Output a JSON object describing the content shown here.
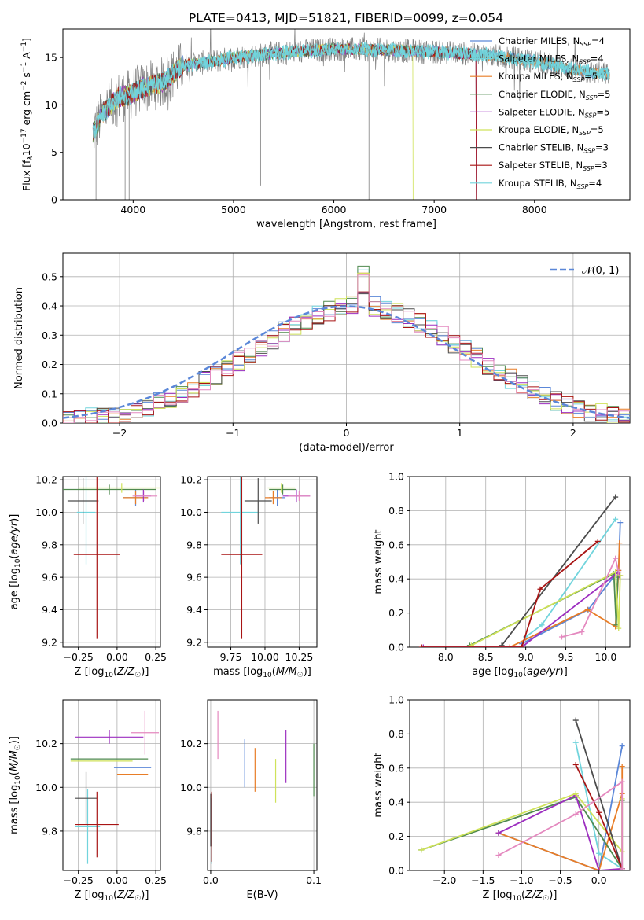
{
  "colors": {
    "c0": "#5b87d8",
    "c1": "#71d4dc",
    "c2": "#e87d27",
    "c3": "#4f8a4f",
    "c4": "#9d2fc0",
    "c5": "#cfe25a",
    "c6": "#4c4c4c",
    "c7": "#a81414",
    "c8": "#e489bf",
    "grid": "#b0b0b0",
    "gaussian": "#5b87d8"
  },
  "chart_data": [
    {
      "id": "spectrum",
      "type": "line",
      "title": "PLATE=0413, MJD=51821, FIBERID=0099, z=0.054",
      "xlabel": "wavelength [Angstrom, rest frame]",
      "ylabel": "Flux [f_λ10^-17 erg cm^-2 s^-1 A^-1]",
      "xlim": [
        3300,
        8950
      ],
      "ylim": [
        0,
        18
      ],
      "xticks": [
        "4000",
        "5000",
        "6000",
        "7000",
        "8000"
      ],
      "yticks": [
        "0",
        "5",
        "10",
        "15"
      ],
      "grid": false,
      "legend": "right",
      "legend_entries": [
        {
          "label": "Chabrier MILES, N",
          "sub": "SSP",
          "suffix": "=4",
          "color": "c0"
        },
        {
          "label": "Salpeter MILES, N",
          "sub": "SSP",
          "suffix": "=4",
          "color": "c1"
        },
        {
          "label": "Kroupa MILES, N",
          "sub": "SSP",
          "suffix": "=5",
          "color": "c2"
        },
        {
          "label": "Chabrier ELODIE, N",
          "sub": "SSP",
          "suffix": "=5",
          "color": "c3"
        },
        {
          "label": "Salpeter ELODIE, N",
          "sub": "SSP",
          "suffix": "=5",
          "color": "c4"
        },
        {
          "label": "Kroupa ELODIE, N",
          "sub": "SSP",
          "suffix": "=5",
          "color": "c5"
        },
        {
          "label": "Chabrier STELIB, N",
          "sub": "SSP",
          "suffix": "=3",
          "color": "c6"
        },
        {
          "label": "Salpeter STELIB, N",
          "sub": "SSP",
          "suffix": "=3",
          "color": "c7"
        },
        {
          "label": "Kroupa STELIB, N",
          "sub": "SSP",
          "suffix": "=4",
          "color": "c1"
        }
      ],
      "continuum_points": [
        [
          3600,
          7.0
        ],
        [
          3700,
          9.2
        ],
        [
          3850,
          10.8
        ],
        [
          3950,
          11.0
        ],
        [
          4100,
          11.8
        ],
        [
          4300,
          12.4
        ],
        [
          4500,
          14.2
        ],
        [
          4800,
          14.6
        ],
        [
          5000,
          15.0
        ],
        [
          5500,
          15.5
        ],
        [
          6000,
          15.9
        ],
        [
          6500,
          15.8
        ],
        [
          7000,
          15.6
        ],
        [
          7500,
          15.3
        ],
        [
          8000,
          14.6
        ],
        [
          8500,
          13.5
        ],
        [
          8750,
          13.2
        ]
      ],
      "models_end": [
        [
          8750,
          8750,
          8750,
          7420,
          7420,
          6790,
          8750,
          7420,
          8750
        ]
      ]
    },
    {
      "id": "residuals",
      "type": "bar",
      "xlabel": "(data-model)/error",
      "ylabel": "Normed distribution",
      "xlim": [
        -2.5,
        2.5
      ],
      "ylim": [
        0,
        0.58
      ],
      "xticks": [
        -2,
        -1,
        0,
        1,
        2
      ],
      "yticks": [
        0.0,
        0.1,
        0.2,
        0.3,
        0.4,
        0.5
      ],
      "xtick_labels": [
        "−2",
        "−1",
        "0",
        "1",
        "2"
      ],
      "ytick_labels": [
        "0.0",
        "0.1",
        "0.2",
        "0.3",
        "0.4",
        "0.5"
      ],
      "grid": true,
      "legend": "top-right",
      "gaussian_label": "𝒩(0, 1)",
      "bin_width": 0.1
    },
    {
      "id": "age_vs_Z",
      "type": "scatter",
      "xlabel": "Z [log10(Z/Z☉)]",
      "ylabel": "age [log10(age/yr)]",
      "xlim": [
        -0.35,
        0.28
      ],
      "ylim": [
        9.17,
        10.22
      ],
      "xticks": [
        "−0.25",
        "0.00",
        "0.25"
      ],
      "yticks": [
        "9.2",
        "9.4",
        "9.6",
        "9.8",
        "10.0",
        "10.2"
      ],
      "grid": true,
      "points": [
        {
          "x": 0.12,
          "y": 10.09,
          "xerr": 0.08,
          "yerr": 0.05,
          "color": "c0"
        },
        {
          "x": -0.2,
          "y": 10.0,
          "xerr": 0.06,
          "yerr": 0.32,
          "color": "c1"
        },
        {
          "x": 0.12,
          "y": 10.09,
          "xerr": 0.08,
          "yerr": 0.04,
          "color": "c2"
        },
        {
          "x": -0.05,
          "y": 10.14,
          "xerr": 0.3,
          "yerr": 0.03,
          "color": "c3"
        },
        {
          "x": 0.17,
          "y": 10.1,
          "xerr": 0.05,
          "yerr": 0.04,
          "color": "c4"
        },
        {
          "x": 0.03,
          "y": 10.15,
          "xerr": 0.28,
          "yerr": 0.03,
          "color": "c5"
        },
        {
          "x": -0.22,
          "y": 10.07,
          "xerr": 0.1,
          "yerr": 0.14,
          "color": "c6"
        },
        {
          "x": -0.13,
          "y": 9.74,
          "xerr": 0.15,
          "yerr": 0.52,
          "color": "c7"
        },
        {
          "x": 0.18,
          "y": 10.1,
          "xerr": 0.08,
          "yerr": 0.03,
          "color": "c8"
        }
      ]
    },
    {
      "id": "age_vs_mass",
      "type": "scatter",
      "xlabel": "mass [log10(M/M☉)]",
      "ylabel": "",
      "xlim": [
        9.58,
        10.38
      ],
      "ylim": [
        9.17,
        10.22
      ],
      "xticks": [
        "9.75",
        "10.00",
        "10.25"
      ],
      "yticks": [
        "9.2",
        "9.4",
        "9.6",
        "9.8",
        "10.0",
        "10.2"
      ],
      "grid": true,
      "points": [
        {
          "x": 10.09,
          "y": 10.09,
          "xerr": 0.06,
          "yerr": 0.05,
          "color": "c0"
        },
        {
          "x": 9.82,
          "y": 10.0,
          "xerr": 0.14,
          "yerr": 0.32,
          "color": "c1"
        },
        {
          "x": 10.06,
          "y": 10.09,
          "xerr": 0.06,
          "yerr": 0.04,
          "color": "c2"
        },
        {
          "x": 10.13,
          "y": 10.14,
          "xerr": 0.1,
          "yerr": 0.03,
          "color": "c3"
        },
        {
          "x": 10.23,
          "y": 10.1,
          "xerr": 0.1,
          "yerr": 0.04,
          "color": "c4"
        },
        {
          "x": 10.12,
          "y": 10.15,
          "xerr": 0.1,
          "yerr": 0.03,
          "color": "c5"
        },
        {
          "x": 9.95,
          "y": 10.07,
          "xerr": 0.1,
          "yerr": 0.14,
          "color": "c6"
        },
        {
          "x": 9.83,
          "y": 9.74,
          "xerr": 0.15,
          "yerr": 0.52,
          "color": "c7"
        },
        {
          "x": 10.25,
          "y": 10.1,
          "xerr": 0.08,
          "yerr": 0.03,
          "color": "c8"
        }
      ]
    },
    {
      "id": "weight_vs_age",
      "type": "line",
      "xlabel": "age [log10(age/yr)]",
      "ylabel": "mass weight",
      "xlim": [
        7.55,
        10.3
      ],
      "ylim": [
        0,
        1.0
      ],
      "xticks": [
        "8.0",
        "8.5",
        "9.0",
        "9.5",
        "10.0"
      ],
      "yticks": [
        "0.0",
        "0.2",
        "0.4",
        "0.6",
        "0.8",
        "1.0"
      ],
      "grid": true,
      "series": [
        {
          "color": "c0",
          "x": [
            8.95,
            9.78,
            10.16,
            10.18
          ],
          "y": [
            0.02,
            0.22,
            0.45,
            0.73
          ]
        },
        {
          "color": "c1",
          "x": [
            9.0,
            9.2,
            10.12
          ],
          "y": [
            0.06,
            0.13,
            0.75
          ]
        },
        {
          "color": "c2",
          "x": [
            8.8,
            9.77,
            10.12,
            10.16,
            10.17
          ],
          "y": [
            0.0,
            0.22,
            0.12,
            0.45,
            0.61
          ]
        },
        {
          "color": "c3",
          "x": [
            8.3,
            10.1,
            10.13,
            10.15
          ],
          "y": [
            0.01,
            0.43,
            0.13,
            0.41
          ]
        },
        {
          "color": "c4",
          "x": [
            7.72,
            8.95,
            10.16,
            10.17
          ],
          "y": [
            0.0,
            0.0,
            0.44,
            0.42
          ]
        },
        {
          "color": "c5",
          "x": [
            8.32,
            10.12,
            10.16,
            10.18
          ],
          "y": [
            0.01,
            0.44,
            0.11,
            0.42
          ]
        },
        {
          "color": "c6",
          "x": [
            8.7,
            10.12
          ],
          "y": [
            0.01,
            0.88
          ]
        },
        {
          "color": "c7",
          "x": [
            7.7,
            8.95,
            9.18,
            9.9
          ],
          "y": [
            0.0,
            0.0,
            0.34,
            0.62
          ]
        },
        {
          "color": "c8",
          "x": [
            9.45,
            9.7,
            10.12,
            10.16
          ],
          "y": [
            0.06,
            0.09,
            0.52,
            0.44
          ]
        }
      ]
    },
    {
      "id": "mass_vs_Z",
      "type": "scatter",
      "xlabel": "Z [log10(Z/Z☉)]",
      "ylabel": "mass [log10(M/M☉)]",
      "xlim": [
        -0.35,
        0.28
      ],
      "ylim": [
        9.62,
        10.4
      ],
      "xticks": [
        "−0.25",
        "0.00",
        "0.25"
      ],
      "yticks": [
        "9.8",
        "10.0",
        "10.2"
      ],
      "grid": true,
      "points": [
        {
          "x": 0.1,
          "y": 10.09,
          "xerr": 0.12,
          "yerr": 0.0,
          "color": "c0"
        },
        {
          "x": -0.19,
          "y": 9.82,
          "xerr": 0.08,
          "yerr": 0.17,
          "color": "c1"
        },
        {
          "x": 0.1,
          "y": 10.06,
          "xerr": 0.1,
          "yerr": 0.0,
          "color": "c2"
        },
        {
          "x": -0.05,
          "y": 10.13,
          "xerr": 0.25,
          "yerr": 0.0,
          "color": "c3"
        },
        {
          "x": -0.05,
          "y": 10.23,
          "xerr": 0.22,
          "yerr": 0.03,
          "color": "c4"
        },
        {
          "x": -0.1,
          "y": 10.12,
          "xerr": 0.2,
          "yerr": 0.0,
          "color": "c5"
        },
        {
          "x": -0.2,
          "y": 9.95,
          "xerr": 0.07,
          "yerr": 0.12,
          "color": "c6"
        },
        {
          "x": -0.13,
          "y": 9.83,
          "xerr": 0.14,
          "yerr": 0.15,
          "color": "c7"
        },
        {
          "x": 0.18,
          "y": 10.25,
          "xerr": 0.09,
          "yerr": 0.1,
          "color": "c8"
        }
      ]
    },
    {
      "id": "mass_vs_EBV",
      "type": "scatter",
      "xlabel": "E(B-V)",
      "ylabel": "",
      "xlim": [
        -0.003,
        0.103
      ],
      "ylim": [
        9.62,
        10.4
      ],
      "xticks": [
        "0.0",
        "0.1"
      ],
      "yticks": [
        "9.8",
        "10.0",
        "10.2"
      ],
      "grid": true,
      "points": [
        {
          "x": 0.033,
          "y": 10.11,
          "yerr": 0.11,
          "color": "c0"
        },
        {
          "x": 0.001,
          "y": 9.8,
          "yerr": 0.15,
          "color": "c1"
        },
        {
          "x": 0.043,
          "y": 10.08,
          "yerr": 0.1,
          "color": "c2"
        },
        {
          "x": 0.1,
          "y": 10.08,
          "yerr": 0.12,
          "color": "c3"
        },
        {
          "x": 0.073,
          "y": 10.14,
          "yerr": 0.12,
          "color": "c4"
        },
        {
          "x": 0.063,
          "y": 10.03,
          "yerr": 0.1,
          "color": "c5"
        },
        {
          "x": 0.0,
          "y": 9.85,
          "yerr": 0.12,
          "color": "c6"
        },
        {
          "x": 0.001,
          "y": 9.82,
          "yerr": 0.16,
          "color": "c7"
        },
        {
          "x": 0.007,
          "y": 10.24,
          "yerr": 0.11,
          "color": "c8"
        }
      ]
    },
    {
      "id": "weight_vs_Z",
      "type": "line",
      "xlabel": "Z [log10(Z/Z☉)]",
      "ylabel": "mass weight",
      "xlim": [
        -2.45,
        0.4
      ],
      "ylim": [
        0,
        1.0
      ],
      "xticks": [
        "−2.0",
        "−1.5",
        "−1.0",
        "−0.5",
        "0.0"
      ],
      "yticks": [
        "0.0",
        "0.2",
        "0.4",
        "0.6",
        "0.8",
        "1.0"
      ],
      "grid": true,
      "series": [
        {
          "color": "c0",
          "x": [
            -1.3,
            0.0,
            0.3
          ],
          "y": [
            0.22,
            0.0,
            0.73
          ]
        },
        {
          "color": "c1",
          "x": [
            -0.3,
            0.0,
            0.3
          ],
          "y": [
            0.75,
            0.1,
            0.01
          ]
        },
        {
          "color": "c2",
          "x": [
            -1.3,
            0.0,
            0.3,
            0.3
          ],
          "y": [
            0.22,
            0.0,
            0.45,
            0.61
          ]
        },
        {
          "color": "c3",
          "x": [
            -2.3,
            -0.3,
            0.3,
            0.3
          ],
          "y": [
            0.12,
            0.43,
            0.01,
            0.41
          ]
        },
        {
          "color": "c4",
          "x": [
            -1.3,
            -0.3,
            0.0,
            0.3
          ],
          "y": [
            0.22,
            0.44,
            0.0,
            0.01
          ]
        },
        {
          "color": "c5",
          "x": [
            -2.3,
            -0.3,
            0.3,
            0.3
          ],
          "y": [
            0.12,
            0.45,
            0.11,
            0.42
          ]
        },
        {
          "color": "c6",
          "x": [
            -0.3,
            0.3
          ],
          "y": [
            0.88,
            0.01
          ]
        },
        {
          "color": "c7",
          "x": [
            -0.3,
            0.0,
            0.3
          ],
          "y": [
            0.62,
            0.34,
            0.01
          ]
        },
        {
          "color": "c8",
          "x": [
            -1.3,
            -0.3,
            0.3,
            0.3
          ],
          "y": [
            0.09,
            0.33,
            0.52,
            0.01
          ]
        }
      ]
    }
  ]
}
